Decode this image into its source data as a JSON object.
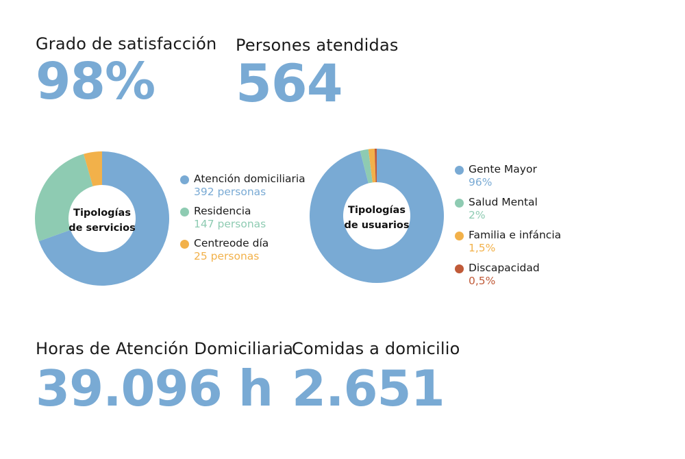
{
  "kpis": {
    "satisfaction": {
      "label": "Grado de satisfacción",
      "value": "98%"
    },
    "attended": {
      "label": "Persones atendidas",
      "value": "564"
    },
    "hours": {
      "label": "Horas de Atención Domiciliaria",
      "value": "39.096 h"
    },
    "meals": {
      "label": "Comidas a domicilio",
      "value": "2.651"
    }
  },
  "colors": {
    "accent": "#79aad4"
  },
  "chart_data": [
    {
      "type": "pie",
      "title": "Tipologías de servicios",
      "center_lines": [
        "Tipologías",
        "de servicios"
      ],
      "slices": [
        {
          "name": "Atención domiciliaria",
          "value": 392,
          "display": "392 personas",
          "color": "#79aad4"
        },
        {
          "name": "Residencia",
          "value": 147,
          "display": "147 personas",
          "color": "#8ecbb2"
        },
        {
          "name": "Centreode día",
          "value": 25,
          "display": "25 personas",
          "color": "#f2b14a"
        }
      ]
    },
    {
      "type": "pie",
      "title": "Tipologías de usuarios",
      "center_lines": [
        "Tipologías",
        "de usuarios"
      ],
      "slices": [
        {
          "name": "Gente Mayor",
          "value": 96,
          "display": "96%",
          "color": "#79aad4"
        },
        {
          "name": "Salud Mental",
          "value": 2,
          "display": "2%",
          "color": "#8ecbb2"
        },
        {
          "name": "Familia e infáncia",
          "value": 1.5,
          "display": "1,5%",
          "color": "#f2b14a"
        },
        {
          "name": "Discapacidad",
          "value": 0.5,
          "display": "0,5%",
          "color": "#c05a38"
        }
      ]
    }
  ]
}
